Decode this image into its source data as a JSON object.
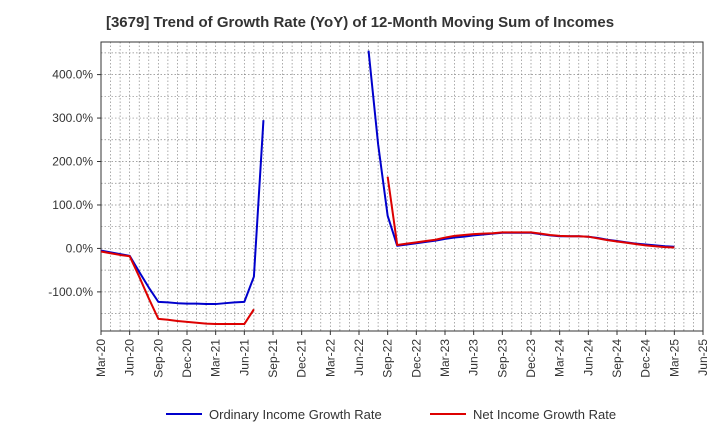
{
  "chart_data": {
    "type": "line",
    "title": "[3679]  Trend of Growth Rate (YoY) of 12-Month Moving Sum of Incomes",
    "xlabel": "",
    "ylabel": "",
    "ylim": [
      -190,
      475
    ],
    "grid": true,
    "legend_position": "bottom",
    "x_ticks": [
      "Mar-20",
      "Jun-20",
      "Sep-20",
      "Dec-20",
      "Mar-21",
      "Jun-21",
      "Sep-21",
      "Dec-21",
      "Mar-22",
      "Jun-22",
      "Sep-22",
      "Dec-22",
      "Mar-23",
      "Jun-23",
      "Sep-23",
      "Dec-23",
      "Mar-24",
      "Jun-24",
      "Sep-24",
      "Dec-24",
      "Mar-25",
      "Jun-25"
    ],
    "y_ticks": [
      -100,
      0,
      100,
      200,
      300,
      400
    ],
    "y_tick_labels": [
      "-100.0%",
      "0.0%",
      "100.0%",
      "200.0%",
      "300.0%",
      "400.0%"
    ],
    "x": [
      "Mar-20",
      "Apr-20",
      "May-20",
      "Jun-20",
      "Jul-20",
      "Aug-20",
      "Sep-20",
      "Oct-20",
      "Nov-20",
      "Dec-20",
      "Jan-21",
      "Feb-21",
      "Mar-21",
      "Apr-21",
      "May-21",
      "Jun-21",
      "Jul-21",
      "Aug-21",
      "Sep-21",
      "Oct-21",
      "Nov-21",
      "Dec-21",
      "Jan-22",
      "Feb-22",
      "Mar-22",
      "Apr-22",
      "May-22",
      "Jun-22",
      "Jul-22",
      "Aug-22",
      "Sep-22",
      "Oct-22",
      "Nov-22",
      "Dec-22",
      "Jan-23",
      "Feb-23",
      "Mar-23",
      "Apr-23",
      "May-23",
      "Jun-23",
      "Jul-23",
      "Aug-23",
      "Sep-23",
      "Oct-23",
      "Nov-23",
      "Dec-23",
      "Jan-24",
      "Feb-24",
      "Mar-24",
      "Apr-24",
      "May-24",
      "Jun-24",
      "Jul-24",
      "Aug-24",
      "Sep-24",
      "Oct-24",
      "Nov-24",
      "Dec-24",
      "Jan-25",
      "Feb-25",
      "Mar-25"
    ],
    "series": [
      {
        "name": "Ordinary Income Growth Rate",
        "color": "#0000cc",
        "values": [
          -5,
          -9,
          -13,
          -17,
          -54,
          -90,
          -123,
          -124,
          -126,
          -127,
          -127,
          -128,
          -128,
          -126,
          -124,
          -123,
          -65,
          295,
          null,
          null,
          null,
          null,
          null,
          null,
          null,
          null,
          null,
          null,
          455,
          240,
          75,
          6,
          9,
          12,
          15,
          18,
          22,
          25,
          27,
          30,
          32,
          34,
          36,
          36,
          36,
          36,
          33,
          30,
          28,
          28,
          28,
          27,
          24,
          20,
          17,
          14,
          11,
          9,
          7,
          5,
          4
        ]
      },
      {
        "name": "Net Income Growth Rate",
        "color": "#dd0000",
        "values": [
          -7,
          -11,
          -15,
          -18,
          -65,
          -115,
          -162,
          -164,
          -167,
          -169,
          -171,
          -173,
          -174,
          -174,
          -174,
          -174,
          -140,
          null,
          null,
          null,
          null,
          null,
          null,
          null,
          null,
          null,
          null,
          null,
          null,
          null,
          165,
          8,
          11,
          14,
          17,
          20,
          25,
          29,
          31,
          33,
          34,
          35,
          37,
          37,
          37,
          37,
          34,
          31,
          29,
          28,
          28,
          27,
          23,
          19,
          16,
          13,
          10,
          7,
          5,
          3,
          2
        ]
      }
    ]
  }
}
